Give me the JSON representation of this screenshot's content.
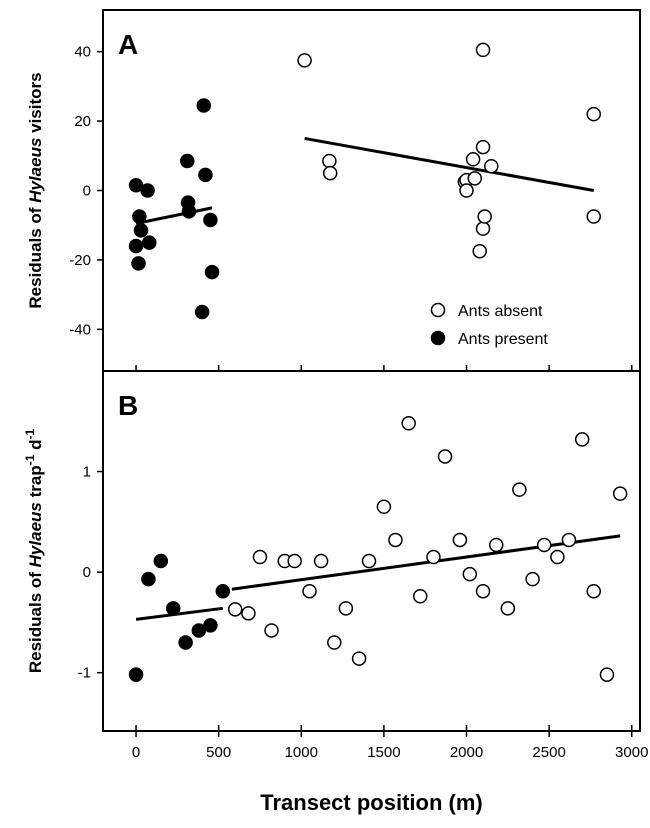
{
  "xlabel": "Transect position (m)",
  "x_ticks": [
    0,
    500,
    1000,
    1500,
    2000,
    2500,
    3000
  ],
  "legend": {
    "absent_label": "Ants absent",
    "present_label": "Ants present"
  },
  "chart_data": [
    {
      "type": "scatter",
      "panel": "A",
      "ylabel_parts": [
        "Residuals of ",
        "Hylaeus",
        " visitors"
      ],
      "xlim": [
        -200,
        3050
      ],
      "ylim": [
        -52,
        52
      ],
      "x_ticks": [
        0,
        500,
        1000,
        1500,
        2000,
        2500,
        3000
      ],
      "y_ticks": [
        -40,
        -20,
        0,
        20,
        40
      ],
      "y_tick_labels": [
        "-40",
        "-20",
        "0",
        "20",
        "40"
      ],
      "legend_position": "bottom-right",
      "series": [
        {
          "name": "Ants absent",
          "marker": "open-circle",
          "points": [
            [
              1020,
              37.5
            ],
            [
              1170,
              8.5
            ],
            [
              1175,
              5
            ],
            [
              1990,
              2.5
            ],
            [
              2000,
              3
            ],
            [
              2000,
              0
            ],
            [
              2040,
              9
            ],
            [
              2050,
              3.5
            ],
            [
              2080,
              -17.5
            ],
            [
              2100,
              40.5
            ],
            [
              2100,
              12.5
            ],
            [
              2100,
              -11
            ],
            [
              2110,
              -7.5
            ],
            [
              2150,
              7
            ],
            [
              2770,
              22
            ],
            [
              2770,
              -7.5
            ]
          ],
          "fit_line": [
            [
              1020,
              15
            ],
            [
              2770,
              0
            ]
          ]
        },
        {
          "name": "Ants present",
          "marker": "filled-circle",
          "points": [
            [
              0,
              1.5
            ],
            [
              0,
              -16
            ],
            [
              15,
              -21
            ],
            [
              20,
              -7.5
            ],
            [
              30,
              -11.5
            ],
            [
              70,
              0
            ],
            [
              80,
              -15
            ],
            [
              310,
              8.5
            ],
            [
              315,
              -3.5
            ],
            [
              320,
              -6
            ],
            [
              400,
              -35
            ],
            [
              410,
              24.5
            ],
            [
              420,
              4.5
            ],
            [
              450,
              -8.5
            ],
            [
              460,
              -23.5
            ]
          ],
          "fit_line": [
            [
              0,
              -9.5
            ],
            [
              460,
              -5
            ]
          ]
        }
      ]
    },
    {
      "type": "scatter",
      "panel": "B",
      "ylabel_parts": [
        "Residuals of ",
        "Hylaeus",
        " trap",
        "-1",
        " d",
        "-1"
      ],
      "xlim": [
        -200,
        3050
      ],
      "ylim": [
        -1.58,
        2.0
      ],
      "x_ticks": [
        0,
        500,
        1000,
        1500,
        2000,
        2500,
        3000
      ],
      "y_ticks": [
        -1,
        0,
        1
      ],
      "y_tick_labels": [
        "-1",
        "0",
        "1"
      ],
      "series": [
        {
          "name": "Ants absent",
          "marker": "open-circle",
          "points": [
            [
              600,
              -0.37
            ],
            [
              680,
              -0.41
            ],
            [
              750,
              0.15
            ],
            [
              820,
              -0.58
            ],
            [
              900,
              0.11
            ],
            [
              960,
              0.11
            ],
            [
              1050,
              -0.19
            ],
            [
              1120,
              0.11
            ],
            [
              1200,
              -0.7
            ],
            [
              1270,
              -0.36
            ],
            [
              1350,
              -0.86
            ],
            [
              1410,
              0.11
            ],
            [
              1500,
              0.65
            ],
            [
              1570,
              0.32
            ],
            [
              1650,
              1.48
            ],
            [
              1720,
              -0.24
            ],
            [
              1800,
              0.15
            ],
            [
              1870,
              1.15
            ],
            [
              1960,
              0.32
            ],
            [
              2020,
              -0.02
            ],
            [
              2100,
              -0.19
            ],
            [
              2180,
              0.27
            ],
            [
              2250,
              -0.36
            ],
            [
              2320,
              0.82
            ],
            [
              2400,
              -0.07
            ],
            [
              2470,
              0.27
            ],
            [
              2550,
              0.15
            ],
            [
              2620,
              0.32
            ],
            [
              2700,
              1.32
            ],
            [
              2770,
              -0.19
            ],
            [
              2850,
              -1.02
            ],
            [
              2930,
              0.78
            ]
          ],
          "fit_line": [
            [
              580,
              -0.17
            ],
            [
              2930,
              0.36
            ]
          ]
        },
        {
          "name": "Ants present",
          "marker": "filled-circle",
          "points": [
            [
              0,
              -1.02
            ],
            [
              75,
              -0.07
            ],
            [
              150,
              0.11
            ],
            [
              225,
              -0.36
            ],
            [
              300,
              -0.7
            ],
            [
              380,
              -0.58
            ],
            [
              450,
              -0.53
            ],
            [
              525,
              -0.19
            ]
          ],
          "fit_line": [
            [
              0,
              -0.47
            ],
            [
              525,
              -0.36
            ]
          ]
        }
      ]
    }
  ]
}
